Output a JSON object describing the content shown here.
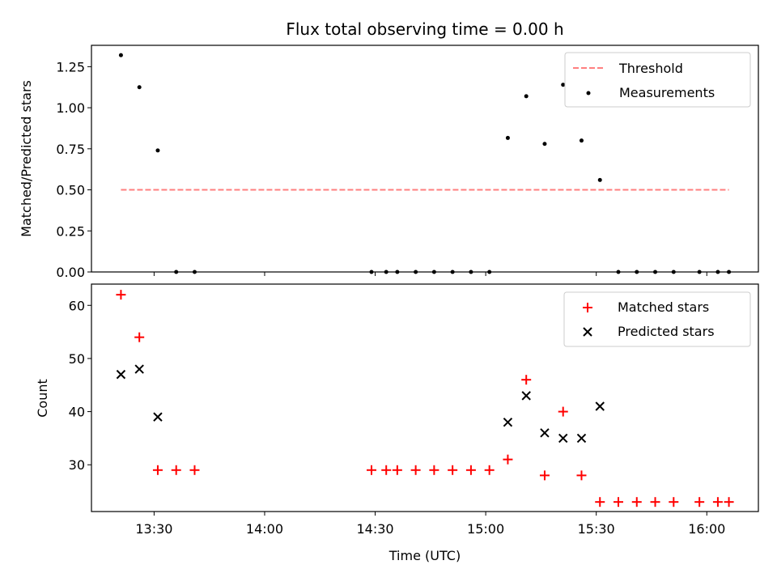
{
  "chart_data": [
    {
      "type": "scatter",
      "title": "Flux total observing time = 0.00 h",
      "xlabel": "",
      "ylabel": "Matched/Predicted stars",
      "xlim": [
        "13:13",
        "16:14"
      ],
      "ylim": [
        0,
        1.38
      ],
      "yticks": [
        "0.00",
        "0.25",
        "0.50",
        "0.75",
        "1.00",
        "1.25"
      ],
      "legend": "top-right",
      "threshold": {
        "name": "Threshold",
        "value": 0.5,
        "x_range": [
          "13:21",
          "16:06"
        ],
        "color": "#ff7f7f"
      },
      "series": [
        {
          "name": "Measurements",
          "color": "#000000",
          "x": [
            "13:21",
            "13:26",
            "13:31",
            "13:36",
            "13:41",
            "14:29",
            "14:33",
            "14:36",
            "14:41",
            "14:46",
            "14:51",
            "14:56",
            "15:01",
            "15:06",
            "15:11",
            "15:16",
            "15:21",
            "15:26",
            "15:31",
            "15:36",
            "15:41",
            "15:46",
            "15:51",
            "15:58",
            "16:03",
            "16:06"
          ],
          "y": [
            1.32,
            1.125,
            0.74,
            0,
            0,
            0,
            0,
            0,
            0,
            0,
            0,
            0,
            0,
            0.816,
            1.07,
            0.78,
            1.14,
            0.8,
            0.56,
            0,
            0,
            0,
            0,
            0,
            0,
            0
          ]
        }
      ]
    },
    {
      "type": "scatter",
      "xlabel": "Time (UTC)",
      "ylabel": "Count",
      "xlim": [
        "13:13",
        "16:14"
      ],
      "ylim": [
        21.2,
        64
      ],
      "xticks": [
        "13:30",
        "14:00",
        "14:30",
        "15:00",
        "15:30",
        "16:00"
      ],
      "yticks": [
        "30",
        "40",
        "50",
        "60"
      ],
      "legend": "top-right",
      "series": [
        {
          "name": "Matched stars",
          "color": "#ff0000",
          "marker": "+",
          "x": [
            "13:21",
            "13:26",
            "13:31",
            "13:36",
            "13:41",
            "14:29",
            "14:33",
            "14:36",
            "14:41",
            "14:46",
            "14:51",
            "14:56",
            "15:01",
            "15:06",
            "15:11",
            "15:16",
            "15:21",
            "15:26",
            "15:31",
            "15:36",
            "15:41",
            "15:46",
            "15:51",
            "15:58",
            "16:03",
            "16:06"
          ],
          "y": [
            62,
            54,
            29,
            29,
            29,
            29,
            29,
            29,
            29,
            29,
            29,
            29,
            29,
            31,
            46,
            28,
            40,
            28,
            23,
            23,
            23,
            23,
            23,
            23,
            23,
            23
          ]
        },
        {
          "name": "Predicted stars",
          "color": "#000000",
          "marker": "x",
          "x": [
            "13:21",
            "13:26",
            "13:31",
            "15:06",
            "15:11",
            "15:16",
            "15:21",
            "15:26",
            "15:31"
          ],
          "y": [
            47,
            48,
            39,
            38,
            43,
            36,
            35,
            35,
            41
          ]
        }
      ]
    }
  ]
}
